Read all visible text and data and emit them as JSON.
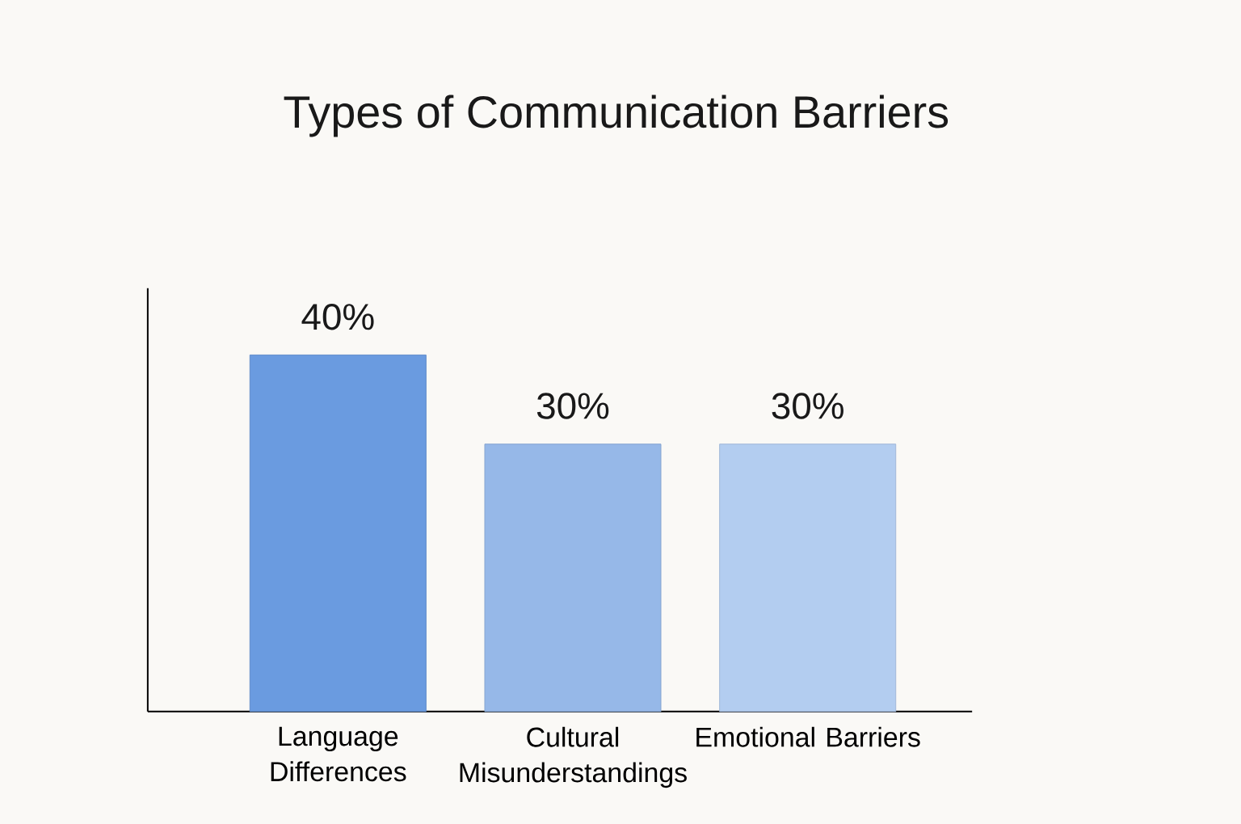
{
  "chart_data": {
    "type": "bar",
    "title": "Types of Communication Barriers",
    "categories": [
      "Language Differences",
      "Cultural Misunderstandings",
      "Emotional Barriers"
    ],
    "values": [
      40,
      30,
      30
    ],
    "value_labels": [
      "40%",
      "30%",
      "30%"
    ],
    "colors": [
      "#6a9be0",
      "#96b8e8",
      "#b3cdf0"
    ],
    "ylim": [
      0,
      47.5
    ]
  }
}
